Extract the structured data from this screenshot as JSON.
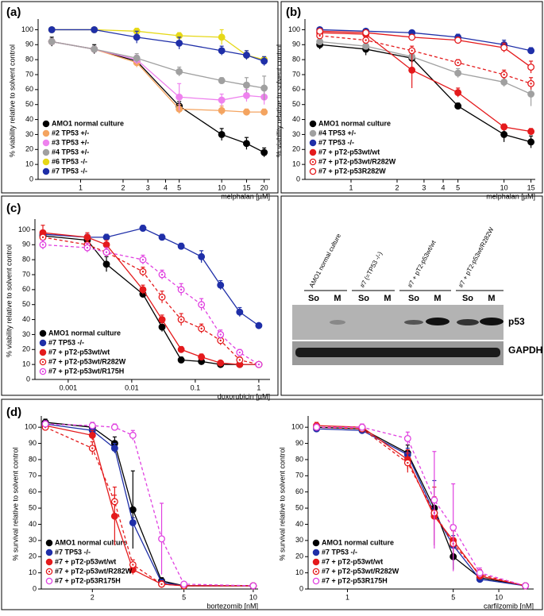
{
  "chart_data": [
    {
      "panel": "(a)",
      "type": "line",
      "xlabel": "melphalan [µM]",
      "ylabel": "% viability relative to solvent control",
      "log_x": true,
      "legend": "lower left",
      "x": [
        0.625,
        1.25,
        2.5,
        5,
        10,
        15,
        20
      ],
      "xlim": [
        0.5,
        22
      ],
      "ylim": [
        0,
        105
      ],
      "xticks": [
        1,
        2,
        3,
        4,
        5,
        10,
        15,
        20
      ],
      "yticks": [
        0,
        10,
        20,
        30,
        40,
        50,
        60,
        70,
        80,
        90,
        100
      ],
      "series": [
        {
          "name": "AMO1 normal culture",
          "color": "#000000",
          "marker": "filled",
          "dash": false,
          "values": [
            92,
            87,
            79,
            49,
            30,
            24,
            18
          ],
          "errors": [
            3,
            3,
            3,
            3,
            4,
            4,
            3
          ]
        },
        {
          "name": "#2 TP53 +/-",
          "color": "#f4a460",
          "marker": "filled",
          "dash": false,
          "values": [
            92,
            87,
            78,
            47,
            46,
            45,
            45
          ],
          "errors": [
            2,
            2,
            3,
            3,
            3,
            2,
            2
          ]
        },
        {
          "name": "#3 TP53 +/-",
          "color": "#ee82ee",
          "marker": "filled",
          "dash": false,
          "values": [
            92,
            87,
            80,
            55,
            53,
            56,
            55
          ],
          "errors": [
            2,
            2,
            3,
            9,
            4,
            4,
            5
          ]
        },
        {
          "name": "#4 TP53 +/-",
          "color": "#a0a0a0",
          "marker": "filled",
          "dash": false,
          "values": [
            92,
            87,
            81,
            72,
            66,
            63,
            61
          ],
          "errors": [
            2,
            2,
            3,
            3,
            2,
            5,
            8
          ]
        },
        {
          "name": "#6 TP53 -/-",
          "color": "#e6d817",
          "marker": "filled",
          "dash": false,
          "values": [
            100,
            100,
            99,
            96,
            95,
            83,
            80
          ],
          "errors": [
            1,
            1,
            2,
            2,
            5,
            3,
            2
          ]
        },
        {
          "name": "#7 TP53 -/-",
          "color": "#1f2fa8",
          "marker": "filled",
          "dash": false,
          "values": [
            100,
            100,
            95,
            91,
            86,
            83,
            79
          ],
          "errors": [
            1,
            1,
            4,
            4,
            3,
            3,
            3
          ]
        }
      ]
    },
    {
      "panel": "(b)",
      "type": "line",
      "xlabel": "melphalan [µM]",
      "ylabel": "% viability relative to solvent control",
      "log_x": true,
      "legend": "lower left",
      "x": [
        0.625,
        1.25,
        2.5,
        5,
        10,
        15
      ],
      "xlim": [
        0.5,
        16
      ],
      "ylim": [
        0,
        105
      ],
      "xticks": [
        1,
        2,
        3,
        4,
        5,
        10,
        15
      ],
      "yticks": [
        0,
        10,
        20,
        30,
        40,
        50,
        60,
        70,
        80,
        90,
        100
      ],
      "series": [
        {
          "name": "AMO1 normal culture",
          "color": "#000000",
          "marker": "filled",
          "dash": false,
          "values": [
            90,
            87,
            81,
            49,
            30,
            25
          ],
          "errors": [
            3,
            4,
            3,
            2,
            5,
            4
          ]
        },
        {
          "name": "#4 TP53 +/-",
          "color": "#a0a0a0",
          "marker": "filled",
          "dash": false,
          "values": [
            92,
            89,
            82,
            71,
            65,
            57
          ],
          "errors": [
            2,
            2,
            3,
            3,
            3,
            8
          ]
        },
        {
          "name": "#7 TP53 -/-",
          "color": "#1f2fa8",
          "marker": "filled",
          "dash": false,
          "values": [
            100,
            99,
            98,
            95,
            90,
            86
          ],
          "errors": [
            1,
            1,
            1,
            2,
            3,
            2
          ]
        },
        {
          "name": "#7 + pT2-p53wt/wt",
          "color": "#e41a1c",
          "marker": "filled",
          "dash": false,
          "values": [
            98,
            97,
            73,
            58,
            35,
            32
          ],
          "errors": [
            1,
            1,
            12,
            3,
            2,
            2
          ]
        },
        {
          "name": "#7 + pT2-p53wt/R282W",
          "color": "#e41a1c",
          "marker": "dotted",
          "dash": true,
          "values": [
            96,
            93,
            86,
            78,
            70,
            64
          ],
          "errors": [
            1,
            2,
            3,
            2,
            3,
            4
          ]
        },
        {
          "name": "#7 + pT2-p53R282W",
          "color": "#e41a1c",
          "marker": "open",
          "dash": false,
          "values": [
            99,
            98,
            95,
            93,
            88,
            75
          ],
          "errors": [
            1,
            1,
            1,
            2,
            3,
            4
          ]
        }
      ]
    },
    {
      "panel": "(c)",
      "type": "line",
      "xlabel": "doxorubicin [µM]",
      "ylabel": "% viability relative to solvent control",
      "log_x": true,
      "legend": "lower left",
      "x": [
        0.0004,
        0.002,
        0.004,
        0.015,
        0.03,
        0.06,
        0.125,
        0.25,
        0.5,
        1
      ],
      "xlim": [
        0.0003,
        1.5
      ],
      "ylim": [
        0,
        105
      ],
      "xticks": [
        0.001,
        0.01,
        0.1,
        1
      ],
      "yticks": [
        0,
        10,
        20,
        30,
        40,
        50,
        60,
        70,
        80,
        90,
        100
      ],
      "series": [
        {
          "name": "AMO1 normal culture",
          "color": "#000000",
          "marker": "filled",
          "dash": false,
          "values": [
            96,
            93,
            77,
            57,
            35,
            13,
            12,
            10,
            10,
            10
          ],
          "errors": [
            3,
            4,
            5,
            2,
            3,
            2,
            2,
            1,
            1,
            1
          ]
        },
        {
          "name": "#7 TP53 -/-",
          "color": "#1f2fa8",
          "marker": "filled",
          "dash": false,
          "values": [
            97,
            95,
            95,
            101,
            95,
            89,
            82,
            63,
            45,
            36
          ],
          "errors": [
            2,
            2,
            2,
            2,
            2,
            2,
            4,
            3,
            3,
            1
          ]
        },
        {
          "name": "#7 + pT2-p53wt/wt",
          "color": "#e41a1c",
          "marker": "filled",
          "dash": false,
          "values": [
            98,
            95,
            90,
            60,
            40,
            20,
            15,
            11,
            10,
            10
          ],
          "errors": [
            5,
            3,
            3,
            3,
            3,
            2,
            2,
            1,
            1,
            1
          ]
        },
        {
          "name": "#7 + pT2-p53wt/R282W",
          "color": "#e41a1c",
          "marker": "dotted",
          "dash": true,
          "values": [
            95,
            90,
            85,
            72,
            55,
            40,
            34,
            26,
            13,
            10
          ],
          "errors": [
            3,
            3,
            3,
            3,
            4,
            4,
            3,
            3,
            2,
            1
          ]
        },
        {
          "name": "#7 + pT2-p53wt/R175H",
          "color": "#e040e0",
          "marker": "dotted",
          "dash": true,
          "values": [
            90,
            88,
            85,
            80,
            70,
            60,
            50,
            30,
            18,
            10
          ],
          "errors": [
            3,
            3,
            3,
            3,
            3,
            4,
            4,
            3,
            2,
            1
          ]
        }
      ]
    },
    {
      "panel": "(d)",
      "type": "line",
      "xlabel": "bortezomib [nM]",
      "ylabel": "% survival relative to solvent control",
      "log_x": true,
      "legend": "lower left",
      "x": [
        1.25,
        2,
        2.5,
        3,
        4,
        5,
        10
      ],
      "xlim": [
        1.2,
        10.5
      ],
      "ylim": [
        0,
        105
      ],
      "xticks": [
        2,
        5,
        10
      ],
      "yticks": [
        0,
        10,
        20,
        30,
        40,
        50,
        60,
        70,
        80,
        90,
        100
      ],
      "series": [
        {
          "name": "AMO1 normal culture",
          "color": "#000000",
          "marker": "filled",
          "dash": false,
          "values": [
            103,
            100,
            90,
            49,
            5,
            2,
            2
          ],
          "errors": [
            2,
            3,
            4,
            24,
            2,
            1,
            1
          ]
        },
        {
          "name": "#7 TP53 -/-",
          "color": "#1f2fa8",
          "marker": "filled",
          "dash": false,
          "values": [
            102,
            98,
            87,
            41,
            4,
            2,
            2
          ],
          "errors": [
            2,
            2,
            3,
            3,
            2,
            1,
            1
          ]
        },
        {
          "name": "#7 + pT2-p53wt/wt",
          "color": "#e41a1c",
          "marker": "filled",
          "dash": false,
          "values": [
            101,
            95,
            45,
            12,
            3,
            2,
            2
          ],
          "errors": [
            2,
            3,
            18,
            3,
            2,
            1,
            1
          ]
        },
        {
          "name": "#7 + pT2-p53wt/R282W",
          "color": "#e41a1c",
          "marker": "dotted",
          "dash": true,
          "values": [
            100,
            87,
            54,
            15,
            3,
            2,
            2
          ],
          "errors": [
            2,
            4,
            4,
            3,
            2,
            1,
            1
          ]
        },
        {
          "name": "#7 + pT2-p53R175H",
          "color": "#e040e0",
          "marker": "open",
          "dash": true,
          "values": [
            102,
            101,
            100,
            95,
            31,
            3,
            2
          ],
          "errors": [
            2,
            2,
            2,
            3,
            22,
            1,
            1
          ]
        }
      ]
    },
    {
      "type": "line",
      "xlabel": "carfilzomib [nM]",
      "ylabel": "% survival relative to solvent control",
      "log_x": true,
      "legend": "lower left",
      "x": [
        0.625,
        1.25,
        2.5,
        3.75,
        5,
        7.5,
        15
      ],
      "xlim": [
        0.55,
        17
      ],
      "ylim": [
        0,
        105
      ],
      "xticks": [
        1,
        5,
        10
      ],
      "yticks": [
        0,
        10,
        20,
        30,
        40,
        50,
        60,
        70,
        80,
        90,
        100
      ],
      "series": [
        {
          "name": "AMO1 normal culture",
          "color": "#000000",
          "marker": "filled",
          "dash": false,
          "values": [
            100,
            99,
            84,
            50,
            20,
            7,
            2
          ],
          "errors": [
            2,
            2,
            5,
            6,
            8,
            3,
            1
          ]
        },
        {
          "name": "#7 TP53 -/-",
          "color": "#1f2fa8",
          "marker": "filled",
          "dash": false,
          "values": [
            99,
            98,
            83,
            47,
            27,
            6,
            2
          ],
          "errors": [
            2,
            2,
            4,
            20,
            6,
            2,
            1
          ]
        },
        {
          "name": "#7 + pT2-p53wt/wt",
          "color": "#e41a1c",
          "marker": "filled",
          "dash": false,
          "values": [
            101,
            100,
            80,
            45,
            30,
            8,
            2
          ],
          "errors": [
            2,
            2,
            6,
            18,
            8,
            2,
            1
          ]
        },
        {
          "name": "#7 + pT2-p53wt/R282W",
          "color": "#e41a1c",
          "marker": "dotted",
          "dash": true,
          "values": [
            100,
            99,
            78,
            47,
            28,
            9,
            2
          ],
          "errors": [
            2,
            2,
            6,
            10,
            8,
            3,
            1
          ]
        },
        {
          "name": "#7 + pT2-p53R175H",
          "color": "#e040e0",
          "marker": "open",
          "dash": true,
          "values": [
            100,
            100,
            93,
            55,
            38,
            10,
            2
          ],
          "errors": [
            2,
            2,
            4,
            30,
            27,
            3,
            1
          ]
        }
      ]
    }
  ],
  "blot": {
    "columns": [
      "AMO1 normal culture",
      "#7 (=TP53 -/-)",
      "#7 + pT2-p53wt/wt",
      "#7 + pT2-p53wt/R282W"
    ],
    "lanes": [
      "So",
      "M",
      "So",
      "M",
      "So",
      "M",
      "So",
      "M"
    ],
    "bands": [
      "p53",
      "GAPDH"
    ]
  }
}
